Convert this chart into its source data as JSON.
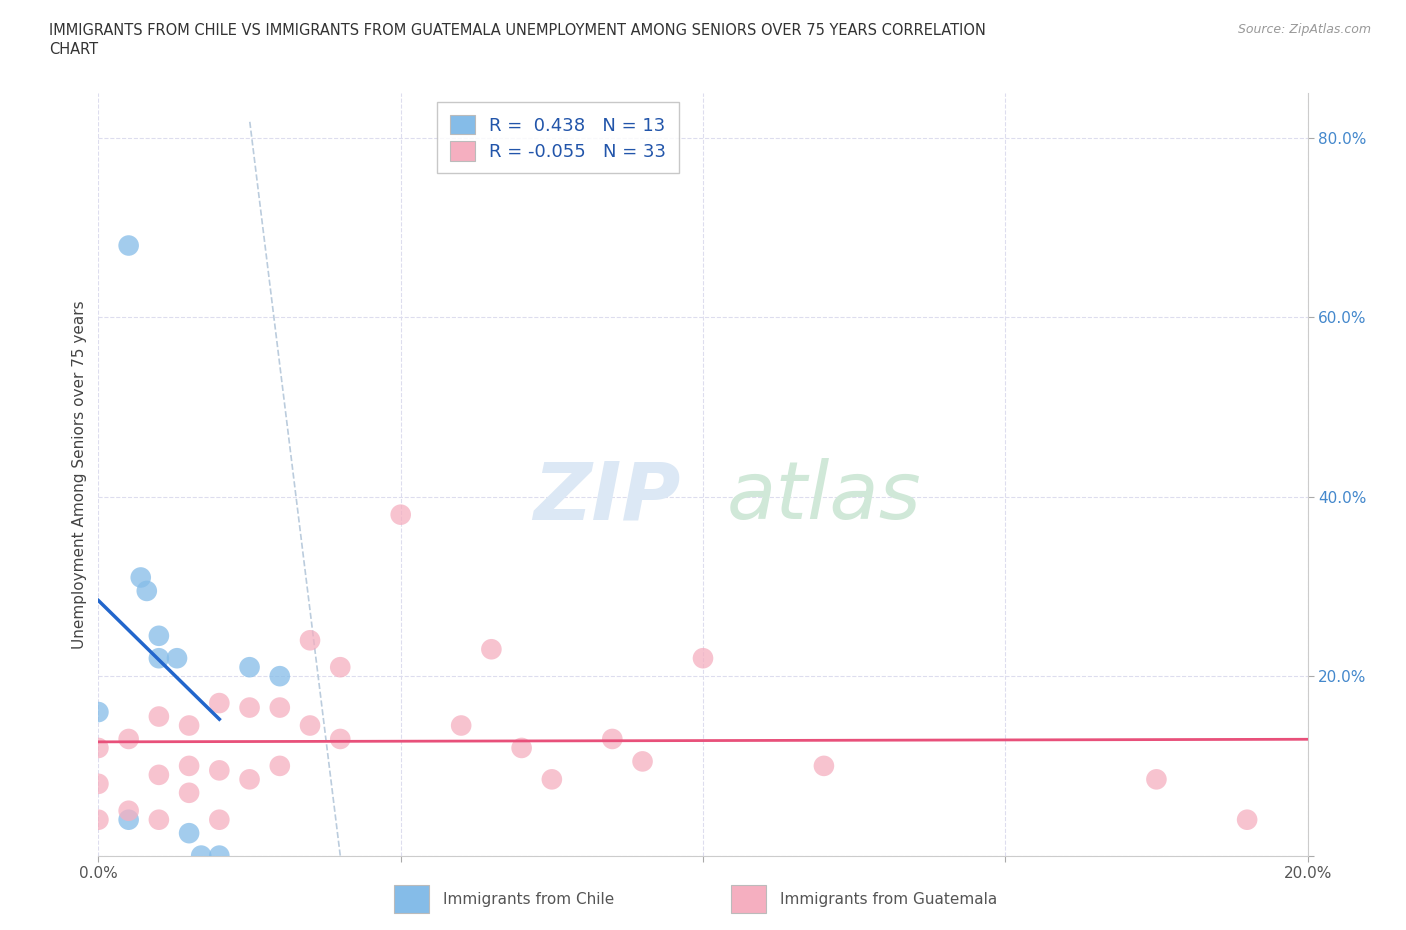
{
  "title_line1": "IMMIGRANTS FROM CHILE VS IMMIGRANTS FROM GUATEMALA UNEMPLOYMENT AMONG SENIORS OVER 75 YEARS CORRELATION",
  "title_line2": "CHART",
  "source": "Source: ZipAtlas.com",
  "ylabel": "Unemployment Among Seniors over 75 years",
  "xlim": [
    0.0,
    0.2
  ],
  "ylim": [
    0.0,
    0.85
  ],
  "x_ticks": [
    0.0,
    0.05,
    0.1,
    0.15,
    0.2
  ],
  "y_ticks": [
    0.0,
    0.2,
    0.4,
    0.6,
    0.8
  ],
  "chile_R": 0.438,
  "chile_N": 13,
  "guatemala_R": -0.055,
  "guatemala_N": 33,
  "chile_color": "#85bce8",
  "guatemala_color": "#f5afc0",
  "chile_line_color": "#2266cc",
  "guatemala_line_color": "#e8507a",
  "dash_line_color": "#bbccdd",
  "chile_x": [
    0.0,
    0.005,
    0.005,
    0.007,
    0.008,
    0.01,
    0.01,
    0.013,
    0.015,
    0.017,
    0.02,
    0.025,
    0.03
  ],
  "chile_y": [
    0.16,
    0.04,
    0.68,
    0.31,
    0.295,
    0.245,
    0.22,
    0.22,
    0.025,
    0.0,
    0.0,
    0.21,
    0.2
  ],
  "guatemala_x": [
    0.0,
    0.0,
    0.0,
    0.005,
    0.005,
    0.01,
    0.01,
    0.01,
    0.015,
    0.015,
    0.015,
    0.02,
    0.02,
    0.02,
    0.025,
    0.025,
    0.03,
    0.03,
    0.035,
    0.035,
    0.04,
    0.04,
    0.05,
    0.06,
    0.065,
    0.07,
    0.075,
    0.085,
    0.09,
    0.1,
    0.12,
    0.175,
    0.19
  ],
  "guatemala_y": [
    0.04,
    0.08,
    0.12,
    0.05,
    0.13,
    0.04,
    0.09,
    0.155,
    0.07,
    0.1,
    0.145,
    0.04,
    0.095,
    0.17,
    0.085,
    0.165,
    0.1,
    0.165,
    0.145,
    0.24,
    0.13,
    0.21,
    0.38,
    0.145,
    0.23,
    0.12,
    0.085,
    0.13,
    0.105,
    0.22,
    0.1,
    0.085,
    0.04
  ],
  "legend_chile": "Immigrants from Chile",
  "legend_guatemala": "Immigrants from Guatemala"
}
